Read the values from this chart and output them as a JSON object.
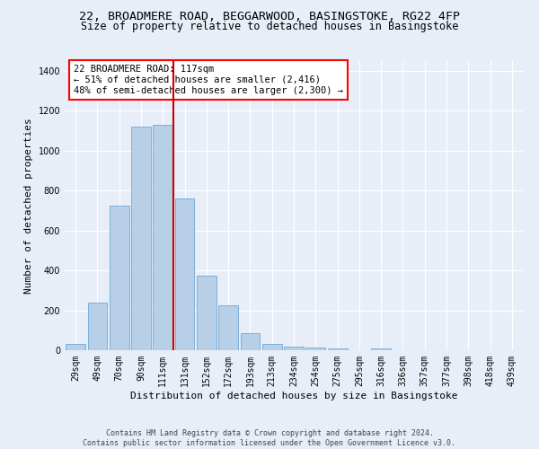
{
  "title1": "22, BROADMERE ROAD, BEGGARWOOD, BASINGSTOKE, RG22 4FP",
  "title2": "Size of property relative to detached houses in Basingstoke",
  "xlabel": "Distribution of detached houses by size in Basingstoke",
  "ylabel": "Number of detached properties",
  "categories": [
    "29sqm",
    "49sqm",
    "70sqm",
    "90sqm",
    "111sqm",
    "131sqm",
    "152sqm",
    "172sqm",
    "193sqm",
    "213sqm",
    "234sqm",
    "254sqm",
    "275sqm",
    "295sqm",
    "316sqm",
    "336sqm",
    "357sqm",
    "377sqm",
    "398sqm",
    "418sqm",
    "439sqm"
  ],
  "values": [
    30,
    240,
    725,
    1120,
    1130,
    760,
    375,
    225,
    85,
    30,
    20,
    15,
    10,
    0,
    10,
    0,
    0,
    0,
    0,
    0,
    0
  ],
  "bar_color": "#b8cfe8",
  "bar_edge_color": "#6fa8d4",
  "vline_color": "#cc0000",
  "annotation_text": "22 BROADMERE ROAD: 117sqm\n← 51% of detached houses are smaller (2,416)\n48% of semi-detached houses are larger (2,300) →",
  "ylim": [
    0,
    1450
  ],
  "yticks": [
    0,
    200,
    400,
    600,
    800,
    1000,
    1200,
    1400
  ],
  "bg_color": "#e8eef8",
  "footer1": "Contains HM Land Registry data © Crown copyright and database right 2024.",
  "footer2": "Contains public sector information licensed under the Open Government Licence v3.0.",
  "title1_fontsize": 9.5,
  "title2_fontsize": 8.5,
  "xlabel_fontsize": 8,
  "ylabel_fontsize": 8,
  "tick_fontsize": 7,
  "annotation_fontsize": 7.5,
  "footer_fontsize": 6
}
